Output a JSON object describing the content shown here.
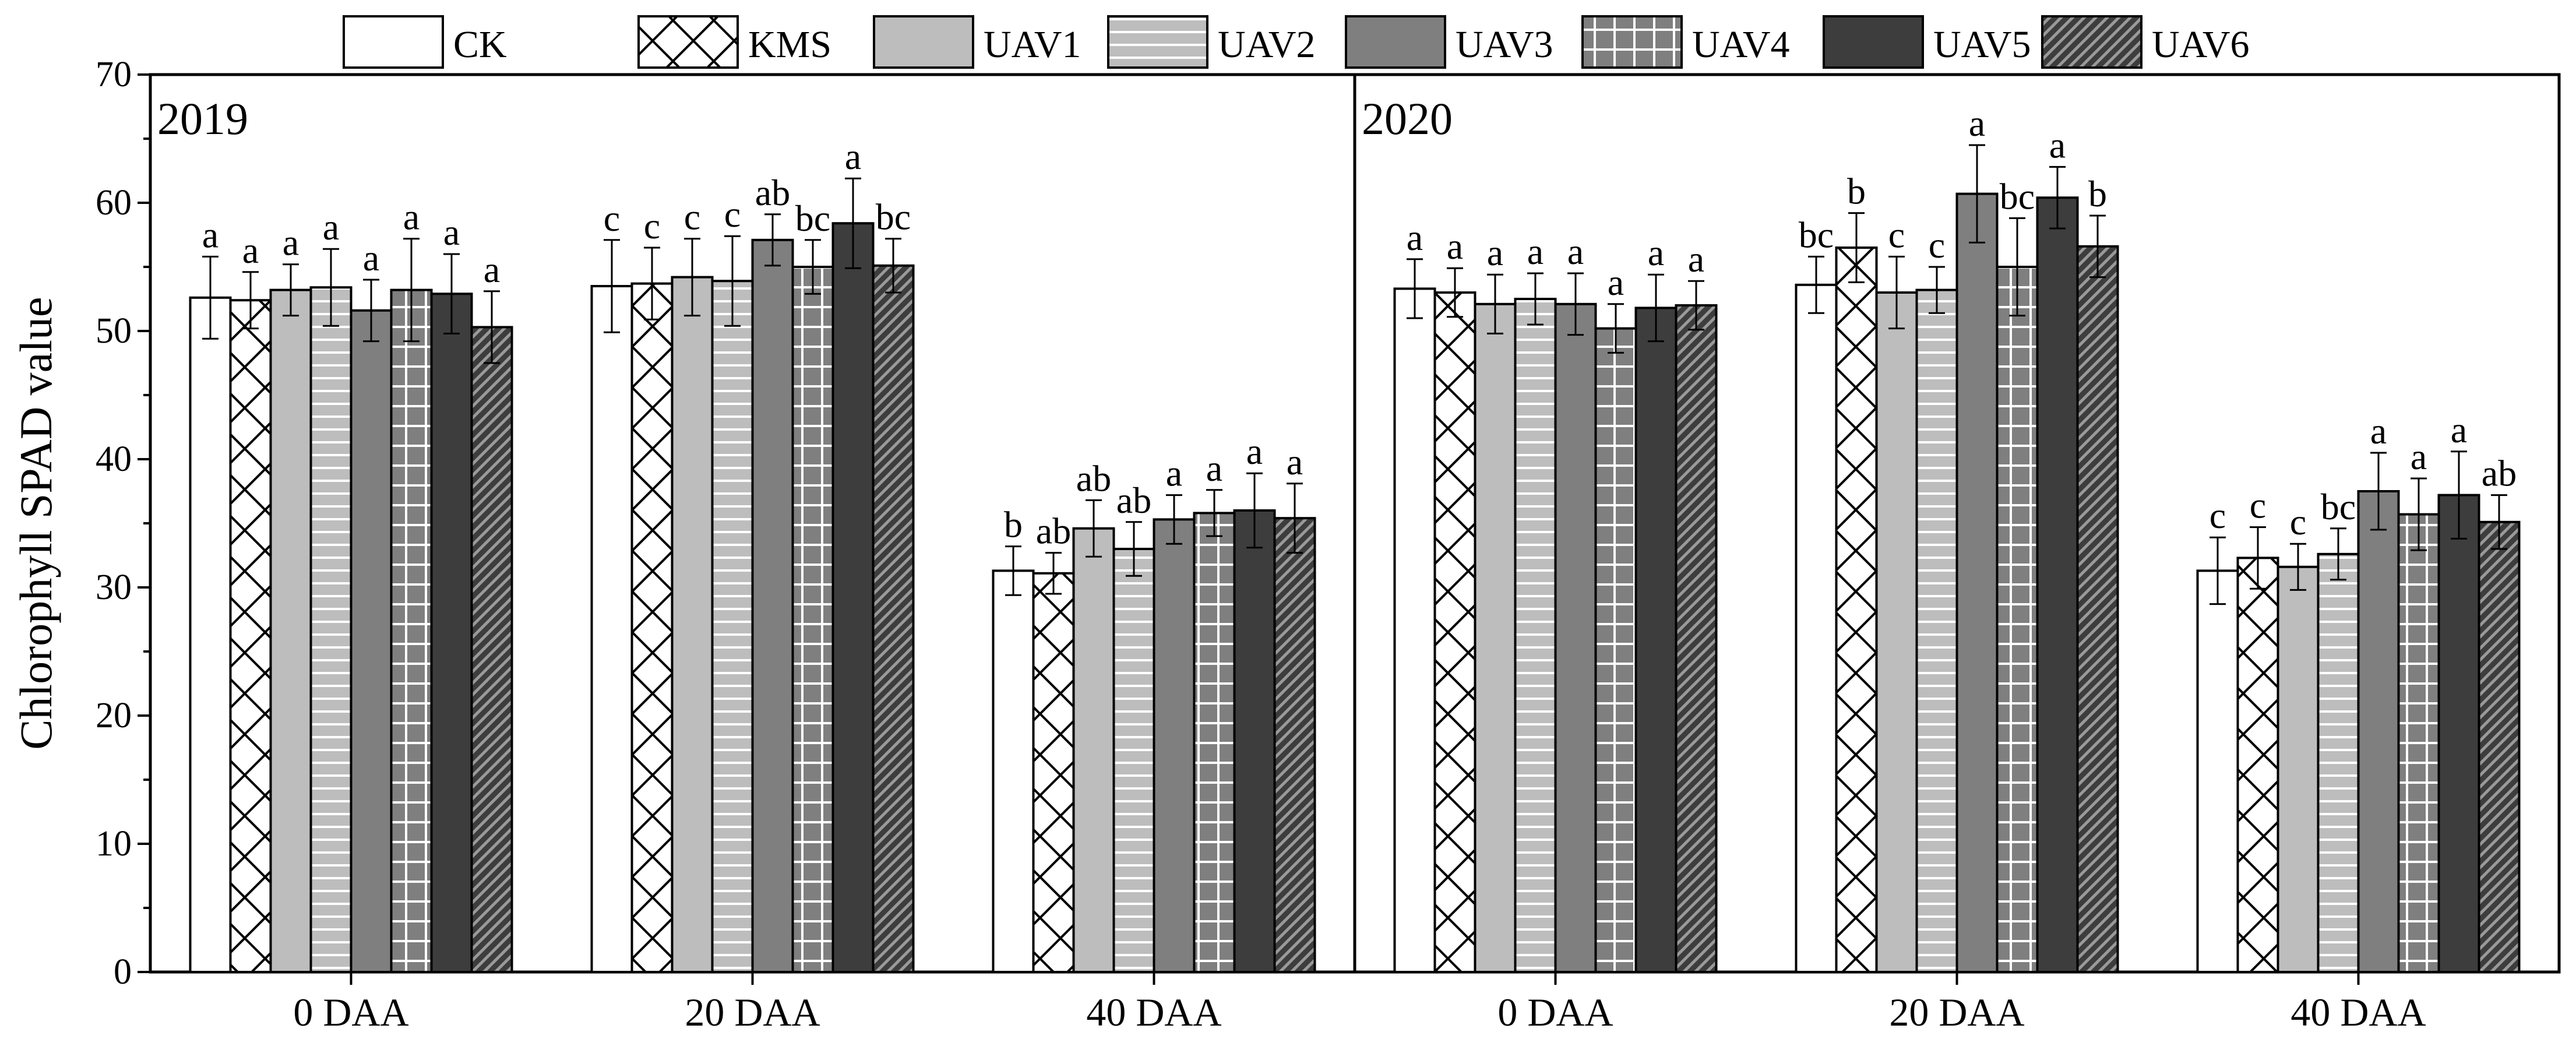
{
  "chart_data": {
    "type": "bar",
    "ylabel": "Chlorophyll SPAD value",
    "ylim": [
      0,
      70
    ],
    "yticks": [
      "0",
      "10",
      "20",
      "30",
      "40",
      "50",
      "60",
      "70"
    ],
    "legend_position": "top",
    "series_names": [
      "CK",
      "KMS",
      "UAV1",
      "UAV2",
      "UAV3",
      "UAV4",
      "UAV5",
      "UAV6"
    ],
    "series_styles": [
      {
        "fill": "#ffffff",
        "pattern": "none"
      },
      {
        "fill": "#ffffff",
        "pattern": "crosshatch"
      },
      {
        "fill": "#bdbdbd",
        "pattern": "none"
      },
      {
        "fill": "#bdbdbd",
        "pattern": "horizontal-lines"
      },
      {
        "fill": "#7f7f7f",
        "pattern": "none"
      },
      {
        "fill": "#7f7f7f",
        "pattern": "grid"
      },
      {
        "fill": "#3d3d3d",
        "pattern": "none"
      },
      {
        "fill": "#3d3d3d",
        "pattern": "diagonal"
      }
    ],
    "panels": [
      {
        "title": "2019",
        "categories": [
          "0 DAA",
          "20 DAA",
          "40 DAA"
        ],
        "groups": [
          {
            "values": [
              52.6,
              52.4,
              53.2,
              53.4,
              51.6,
              53.2,
              52.9,
              50.3
            ],
            "errors": [
              3.2,
              2.2,
              2.0,
              3.0,
              2.4,
              4.0,
              3.1,
              2.8
            ],
            "letters": [
              "a",
              "a",
              "a",
              "a",
              "a",
              "a",
              "a",
              "a"
            ]
          },
          {
            "values": [
              53.5,
              53.7,
              54.2,
              53.9,
              57.1,
              55.0,
              58.4,
              55.1
            ],
            "errors": [
              3.6,
              2.8,
              3.0,
              3.5,
              2.0,
              2.1,
              3.5,
              2.1
            ],
            "letters": [
              "c",
              "c",
              "c",
              "c",
              "ab",
              "bc",
              "a",
              "bc"
            ]
          },
          {
            "values": [
              31.3,
              31.1,
              34.6,
              33.0,
              35.3,
              35.8,
              36.0,
              35.4
            ],
            "errors": [
              1.9,
              1.6,
              2.2,
              2.1,
              1.9,
              1.8,
              2.9,
              2.7
            ],
            "letters": [
              "b",
              "ab",
              "ab",
              "ab",
              "a",
              "a",
              "a",
              "a"
            ]
          }
        ]
      },
      {
        "title": "2020",
        "categories": [
          "0 DAA",
          "20 DAA",
          "40 DAA"
        ],
        "groups": [
          {
            "values": [
              53.3,
              53.0,
              52.1,
              52.5,
              52.1,
              50.2,
              51.8,
              52.0
            ],
            "errors": [
              2.3,
              1.9,
              2.3,
              2.0,
              2.4,
              1.9,
              2.6,
              1.9
            ],
            "letters": [
              "a",
              "a",
              "a",
              "a",
              "a",
              "a",
              "a",
              "a"
            ]
          },
          {
            "values": [
              53.6,
              56.5,
              53.0,
              53.2,
              60.7,
              55.0,
              60.4,
              56.6
            ],
            "errors": [
              2.2,
              2.7,
              2.8,
              1.8,
              3.8,
              3.8,
              2.4,
              2.4
            ],
            "letters": [
              "bc",
              "b",
              "c",
              "c",
              "a",
              "bc",
              "a",
              "b"
            ]
          },
          {
            "values": [
              31.3,
              32.3,
              31.6,
              32.6,
              37.5,
              35.7,
              37.2,
              35.1
            ],
            "errors": [
              2.6,
              2.4,
              1.8,
              2.0,
              3.0,
              2.8,
              3.4,
              2.1
            ],
            "letters": [
              "c",
              "c",
              "c",
              "bc",
              "a",
              "a",
              "a",
              "ab"
            ]
          }
        ]
      }
    ]
  }
}
